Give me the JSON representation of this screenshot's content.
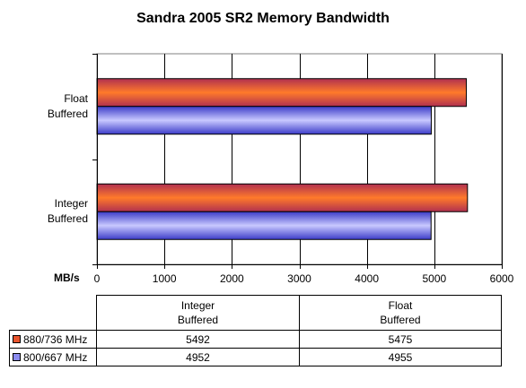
{
  "chart_data": {
    "type": "bar",
    "orientation": "horizontal",
    "title": "Sandra 2005 SR2 Memory Bandwidth",
    "unit_label": "MB/s",
    "categories": [
      "Integer Buffered",
      "Float Buffered"
    ],
    "category_lines": [
      [
        "Integer",
        "Buffered"
      ],
      [
        "Float",
        "Buffered"
      ]
    ],
    "series": [
      {
        "name": "880/736 MHz",
        "values": [
          5492,
          5475
        ],
        "color": "#e8552e"
      },
      {
        "name": "800/667 MHz",
        "values": [
          4952,
          4955
        ],
        "color": "#8c8cf0"
      }
    ],
    "xlim": [
      0,
      6000
    ],
    "x_ticks": [
      "0",
      "1000",
      "2000",
      "3000",
      "4000",
      "5000",
      "6000"
    ],
    "grid": true,
    "legend_placement": "data table below chart"
  }
}
